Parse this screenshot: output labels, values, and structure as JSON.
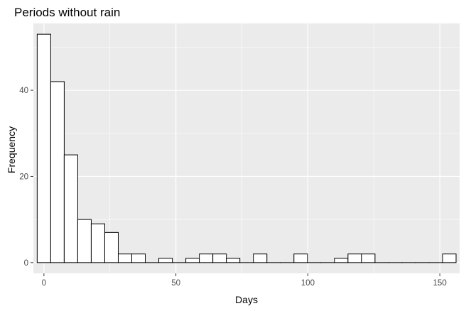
{
  "chart_data": {
    "type": "bar",
    "title": "Periods without rain",
    "xlabel": "Days",
    "ylabel": "Frequency",
    "binwidth": 5.12,
    "xlim": [
      -4,
      157.5
    ],
    "ylim": [
      -2.5,
      55.5
    ],
    "x_ticks": [
      0,
      50,
      100,
      150
    ],
    "y_ticks": [
      0,
      20,
      40
    ],
    "bins": [
      {
        "x": 0,
        "count": 53
      },
      {
        "x": 5.12,
        "count": 42
      },
      {
        "x": 10.24,
        "count": 25
      },
      {
        "x": 15.36,
        "count": 10
      },
      {
        "x": 20.48,
        "count": 9
      },
      {
        "x": 25.6,
        "count": 7
      },
      {
        "x": 30.72,
        "count": 2
      },
      {
        "x": 35.84,
        "count": 2
      },
      {
        "x": 40.96,
        "count": 0
      },
      {
        "x": 46.08,
        "count": 1
      },
      {
        "x": 51.2,
        "count": 0
      },
      {
        "x": 56.32,
        "count": 1
      },
      {
        "x": 61.44,
        "count": 2
      },
      {
        "x": 66.56,
        "count": 2
      },
      {
        "x": 71.68,
        "count": 1
      },
      {
        "x": 76.8,
        "count": 0
      },
      {
        "x": 81.92,
        "count": 2
      },
      {
        "x": 87.04,
        "count": 0
      },
      {
        "x": 92.16,
        "count": 0
      },
      {
        "x": 97.28,
        "count": 2
      },
      {
        "x": 102.4,
        "count": 0
      },
      {
        "x": 107.52,
        "count": 0
      },
      {
        "x": 112.64,
        "count": 1
      },
      {
        "x": 117.76,
        "count": 2
      },
      {
        "x": 122.88,
        "count": 2
      },
      {
        "x": 128.0,
        "count": 0
      },
      {
        "x": 133.12,
        "count": 0
      },
      {
        "x": 138.24,
        "count": 0
      },
      {
        "x": 143.36,
        "count": 0
      },
      {
        "x": 148.48,
        "count": 0
      },
      {
        "x": 153.6,
        "count": 2
      }
    ],
    "grid": true,
    "colors": {
      "panel_background": "#EBEBEB",
      "grid_major": "#FFFFFF",
      "bar_fill": "#FFFFFF",
      "bar_outline": "#000000",
      "tick_text": "#4D4D4D",
      "tick_mark": "#333333"
    }
  }
}
